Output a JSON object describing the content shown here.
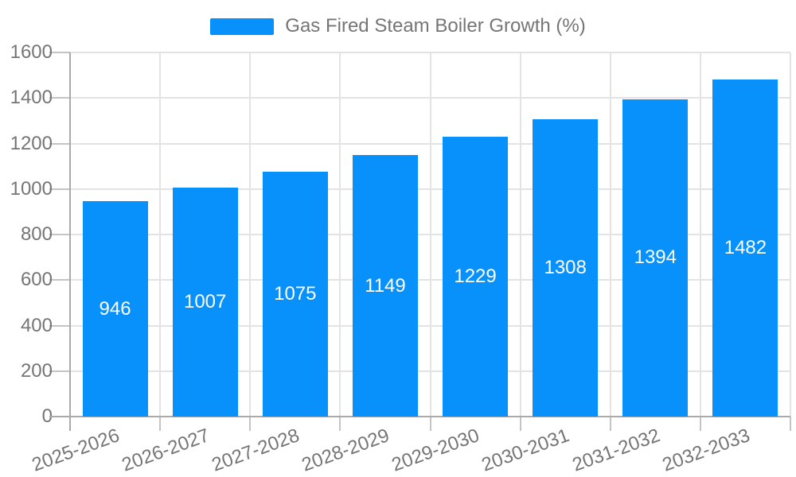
{
  "chart_data": {
    "type": "bar",
    "title": "Gas Fired Steam Boiler Growth (%)",
    "categories": [
      "2025-2026",
      "2026-2027",
      "2027-2028",
      "2028-2029",
      "2029-2030",
      "2030-2031",
      "2031-2032",
      "2032-2033"
    ],
    "values": [
      946,
      1007,
      1075,
      1149,
      1229,
      1308,
      1394,
      1482
    ],
    "xlabel": "",
    "ylabel": "",
    "ylim": [
      0,
      1600
    ],
    "yticks": [
      0,
      200,
      400,
      600,
      800,
      1000,
      1200,
      1400,
      1600
    ],
    "grid": true,
    "legend_position": "top-center",
    "bar_labels_inside": true
  },
  "legend": {
    "label": "Gas Fired Steam Boiler Growth (%)"
  },
  "colors": {
    "bar": "#0991fb",
    "bar_label": "#ffffff",
    "gridline": "#e3e3e3",
    "tick": "#c4c4c4",
    "axis_line": "#aaaaaa",
    "text": "#757575",
    "background": "#ffffff"
  }
}
